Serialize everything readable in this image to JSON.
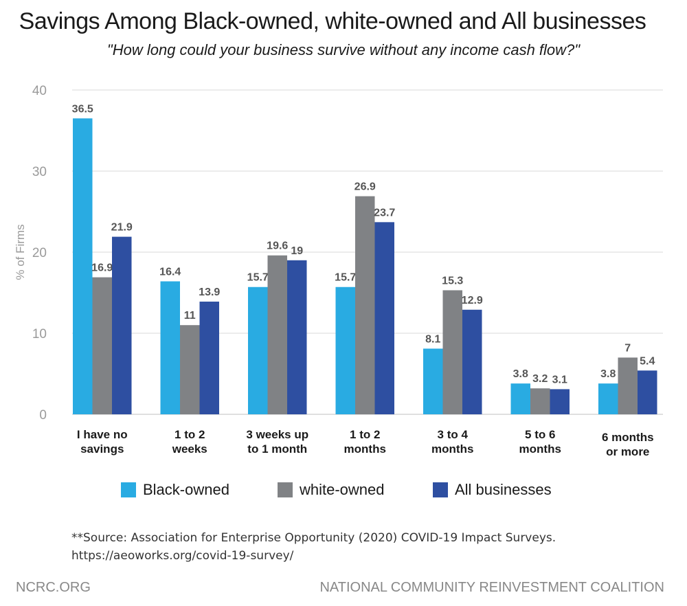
{
  "header": {
    "title": "Savings Among Black-owned, white-owned and All businesses",
    "subtitle": "\"How long could your business survive without any income cash flow?\""
  },
  "colors": {
    "black_owned": "#29abe2",
    "white_owned": "#808285",
    "all_businesses": "#2e4fa1",
    "grid": "#d9d9d9",
    "axis_text": "#9a9a9a",
    "value_text": "#555555"
  },
  "chart_data": {
    "type": "bar",
    "categories": [
      [
        "I have no",
        "savings"
      ],
      [
        "1 to 2",
        "weeks"
      ],
      [
        "3 weeks up",
        "to 1 month"
      ],
      [
        "1 to 2",
        "months"
      ],
      [
        "3 to 4",
        "months"
      ],
      [
        "5 to 6",
        "months"
      ],
      [
        "6 months",
        "or more"
      ]
    ],
    "series": [
      {
        "name": "Black-owned",
        "values": [
          36.5,
          16.4,
          15.7,
          15.7,
          8.1,
          3.8,
          3.8
        ]
      },
      {
        "name": "white-owned",
        "values": [
          16.9,
          11,
          19.6,
          26.9,
          15.3,
          3.2,
          7
        ]
      },
      {
        "name": "All businesses",
        "values": [
          21.9,
          13.9,
          19,
          23.7,
          12.9,
          3.1,
          5.4
        ]
      }
    ],
    "ylabel": "% of Firms",
    "ylim": [
      0,
      40
    ],
    "yticks": [
      0,
      10,
      20,
      30,
      40
    ],
    "grid": true,
    "legend_position": "bottom"
  },
  "source": {
    "line1": "**Source: Association for Enterprise Opportunity (2020) COVID-19 Impact Surveys.",
    "line2": "https://aeoworks.org/covid-19-survey/"
  },
  "footer": {
    "left": "NCRC.ORG",
    "right": "NATIONAL COMMUNITY REINVESTMENT COALITION"
  }
}
